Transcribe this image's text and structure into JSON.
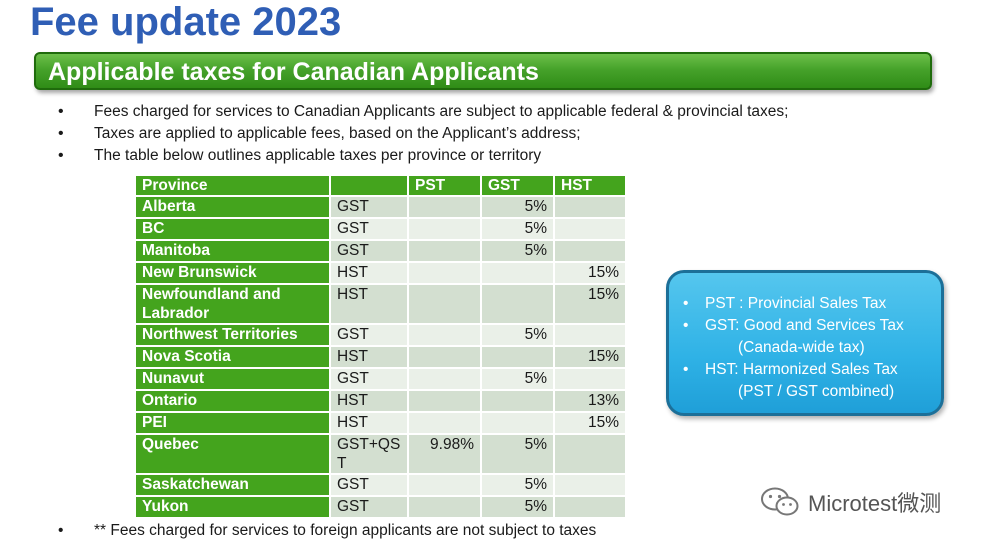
{
  "title": "Fee update 2023",
  "banner": "Applicable taxes for Canadian Applicants",
  "bullets": [
    "Fees charged for services to Canadian Applicants are subject to applicable federal & provincial taxes;",
    "Taxes are applied to applicable fees, based on the Applicant’s address;",
    "The table below outlines applicable taxes per province or territory"
  ],
  "table": {
    "headers": [
      "Province",
      "",
      "PST",
      "GST",
      "HST"
    ],
    "rows": [
      [
        "Alberta",
        "GST",
        "",
        "5%",
        ""
      ],
      [
        "BC",
        "GST",
        "",
        "5%",
        ""
      ],
      [
        "Manitoba",
        "GST",
        "",
        "5%",
        ""
      ],
      [
        "New Brunswick",
        "HST",
        "",
        "",
        "15%"
      ],
      [
        "Newfoundland and Labrador",
        "HST",
        "",
        "",
        "15%"
      ],
      [
        "Northwest Territories",
        "GST",
        "",
        "5%",
        ""
      ],
      [
        "Nova Scotia",
        "HST",
        "",
        "",
        "15%"
      ],
      [
        "Nunavut",
        "GST",
        "",
        "5%",
        ""
      ],
      [
        "Ontario",
        "HST",
        "",
        "",
        "13%"
      ],
      [
        "PEI",
        "HST",
        "",
        "",
        "15%"
      ],
      [
        "Quebec",
        "GST+QST",
        "9.98%",
        "5%",
        ""
      ],
      [
        "Saskatchewan",
        "GST",
        "",
        "5%",
        ""
      ],
      [
        "Yukon",
        "GST",
        "",
        "5%",
        ""
      ]
    ]
  },
  "legend": [
    {
      "line1": "PST : Provincial Sales Tax",
      "line2": ""
    },
    {
      "line1": "GST: Good and Services Tax",
      "line2": "(Canada-wide tax)"
    },
    {
      "line1": "HST: Harmonized Sales Tax",
      "line2": "(PST / GST combined)"
    }
  ],
  "footnote": "** Fees charged for services to foreign applicants are not subject to taxes",
  "watermark": {
    "text": "Microtest微测",
    "icon": "wechat-icon"
  },
  "colors": {
    "title": "#2f5eb5",
    "banner": "#44a41d",
    "table_header": "#44a41d",
    "legend_box": "#2fb2e6"
  }
}
